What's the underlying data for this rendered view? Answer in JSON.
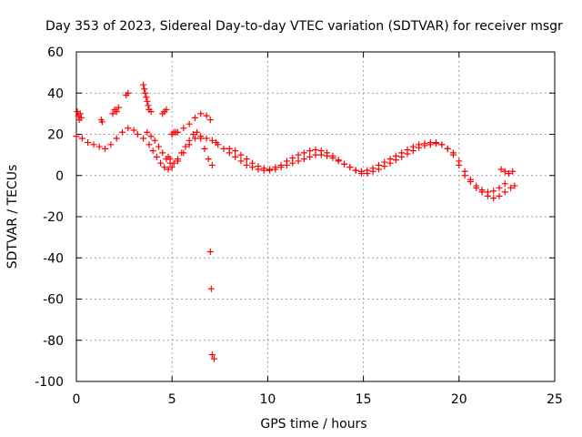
{
  "chart_data": {
    "type": "scatter",
    "title": "Day 353 of 2023, Sidereal Day-to-day VTEC variation (SDTVAR) for receiver msgr",
    "xlabel": "GPS time / hours",
    "ylabel": "SDTVAR / TECUs",
    "xlim": [
      0,
      25
    ],
    "ylim": [
      -100,
      60
    ],
    "xticks": [
      0,
      5,
      10,
      15,
      20,
      25
    ],
    "yticks": [
      -100,
      -80,
      -60,
      -40,
      -20,
      0,
      20,
      40,
      60
    ],
    "xtick_labels": [
      "0",
      "5",
      "10",
      "15",
      "20",
      "25"
    ],
    "ytick_labels": [
      "-100",
      "-80",
      "-60",
      "-40",
      "-20",
      "0",
      "20",
      "40",
      "60"
    ],
    "grid": true,
    "marker": "+",
    "color": "#ff0000",
    "series": [
      {
        "name": "main-trace",
        "x": [
          0.0,
          0.3,
          0.6,
          0.9,
          1.2,
          1.5,
          1.8,
          2.1,
          2.4,
          2.7,
          3.0,
          3.2,
          3.5,
          3.8,
          4.0,
          4.2,
          4.4,
          4.6,
          4.8,
          5.0,
          5.3,
          5.6,
          5.9,
          6.2,
          6.5,
          6.8,
          7.1,
          7.4,
          7.7,
          8.0,
          8.3,
          8.6,
          8.9,
          9.2,
          9.5,
          9.8,
          10.1,
          10.4,
          10.7,
          11.0,
          11.3,
          11.6,
          11.9,
          12.2,
          12.5,
          12.8,
          13.1,
          13.4,
          13.7,
          14.0,
          14.3,
          14.6,
          14.9,
          15.2,
          15.5,
          15.8,
          16.1,
          16.4,
          16.7,
          17.0,
          17.3,
          17.6,
          17.9,
          18.2,
          18.5,
          18.8,
          19.1,
          19.4,
          19.7,
          20.0,
          20.3,
          20.6,
          20.9,
          21.2,
          21.5,
          21.8,
          22.1,
          22.4,
          22.7,
          22.9
        ],
        "y": [
          19,
          18,
          16,
          15,
          14,
          13,
          15,
          18,
          21,
          23,
          22,
          20,
          18,
          15,
          12,
          9,
          6,
          4,
          3,
          4,
          7,
          11,
          15,
          18,
          19,
          18,
          17,
          15,
          13,
          11,
          9,
          7,
          5,
          4,
          3,
          2.5,
          2.5,
          3,
          4,
          5,
          6,
          7,
          8,
          9,
          10,
          10,
          9.5,
          8.5,
          7,
          5.5,
          4,
          2.5,
          1,
          1,
          2,
          3,
          4.5,
          6,
          7.5,
          9,
          10.5,
          12,
          13.5,
          14.5,
          15,
          15.5,
          15,
          13,
          11,
          7,
          2,
          -2,
          -5,
          -8,
          -10,
          -11,
          -10,
          -8,
          -6,
          -5
        ]
      },
      {
        "name": "upper-trace",
        "x": [
          8.0,
          8.3,
          8.6,
          8.9,
          9.2,
          9.5,
          9.8,
          10.1,
          10.4,
          10.7,
          11.0,
          11.3,
          11.6,
          11.9,
          12.2,
          12.5,
          12.8,
          13.1,
          13.4,
          13.7,
          14.0,
          14.3,
          14.6,
          14.9,
          15.2,
          15.5,
          15.8,
          16.1,
          16.4,
          16.7,
          17.0,
          17.3,
          17.6,
          17.9,
          18.2,
          18.5,
          18.8,
          19.1,
          19.4,
          19.7,
          20.0,
          20.3,
          20.6,
          20.9,
          21.2,
          21.5,
          21.8,
          22.1,
          22.4
        ],
        "y": [
          13,
          12,
          10,
          8,
          6,
          4.5,
          3.5,
          3,
          4,
          5,
          7,
          8.5,
          10,
          11,
          12,
          12.5,
          12,
          11,
          9.5,
          7.5,
          5.5,
          4,
          2.5,
          2,
          2.5,
          3.5,
          5,
          6.5,
          8,
          9.5,
          11,
          12.5,
          14,
          15,
          15.5,
          16,
          16,
          15,
          13,
          10,
          5,
          0,
          -3,
          -6,
          -7,
          -8,
          -7.5,
          -6,
          -4
        ]
      },
      {
        "name": "early-upper-arc",
        "x": [
          3.7,
          3.9,
          4.1,
          4.3,
          4.5,
          4.7,
          4.9,
          5.1,
          5.3,
          5.5,
          5.7,
          5.9,
          6.1,
          6.3,
          6.5,
          6.7,
          6.9,
          7.1
        ],
        "y": [
          21,
          19,
          17,
          14,
          11,
          8,
          6,
          6,
          8,
          11,
          14,
          17,
          20,
          21,
          18,
          13,
          8,
          5
        ]
      },
      {
        "name": "late-arc",
        "x": [
          5.0,
          5.3,
          5.6,
          5.9,
          6.2,
          6.5,
          6.8,
          7.0
        ],
        "y": [
          20,
          21,
          23,
          25,
          28,
          30,
          29,
          27
        ]
      },
      {
        "name": "clusters",
        "x": [
          0.05,
          0.1,
          0.15,
          0.2,
          0.25,
          1.3,
          1.35,
          1.9,
          2.0,
          2.1,
          2.2,
          2.6,
          2.7,
          3.5,
          3.55,
          3.6,
          3.65,
          3.7,
          3.75,
          3.8,
          3.9,
          4.5,
          4.6,
          4.7,
          4.8,
          4.9,
          5.0,
          5.1,
          5.2,
          7.0,
          7.05,
          7.1,
          7.2,
          7.3,
          22.2,
          22.4,
          22.6,
          22.8
        ],
        "y": [
          31,
          29,
          27,
          30,
          28,
          27,
          26,
          30,
          32,
          31,
          33,
          39,
          40,
          44,
          42,
          40,
          38,
          36,
          34,
          32,
          31,
          30,
          31,
          32,
          9,
          8,
          20,
          21,
          21,
          -37,
          -55,
          -87,
          -89,
          16,
          3,
          2,
          1,
          2
        ]
      }
    ]
  }
}
